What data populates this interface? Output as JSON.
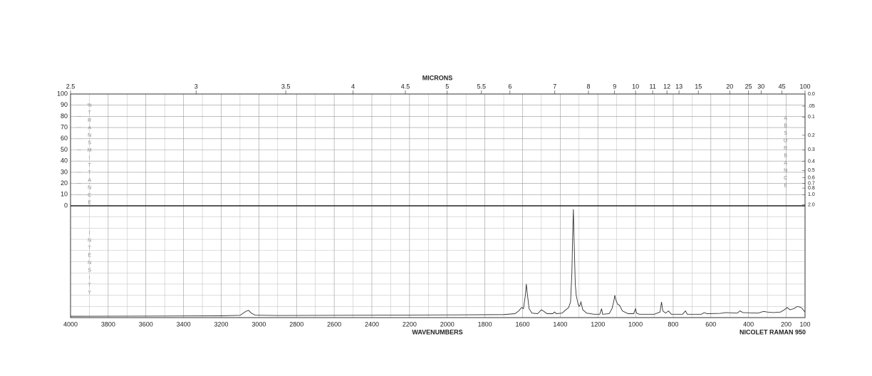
{
  "chart_data": {
    "type": "line",
    "top_x_label": "MICRONS",
    "x_label": "WAVENUMBERS",
    "instrument": "NICOLET RAMAN 950",
    "y_label": "INTENSITY",
    "color": "#333333",
    "grid": true,
    "xlim": [
      4000,
      100
    ],
    "xticks": [
      4000,
      3800,
      3600,
      3400,
      3200,
      3000,
      2800,
      2600,
      2400,
      2200,
      2000,
      1800,
      1600,
      1400,
      1200,
      1000,
      800,
      600,
      400,
      200,
      100
    ],
    "microns_ticks": [
      2.5,
      3,
      3.5,
      4,
      4.5,
      5,
      5.5,
      6,
      7,
      8,
      9,
      10,
      11,
      12,
      13,
      15,
      20,
      25,
      30,
      45,
      100
    ],
    "transmittance": {
      "label": "%TRANSMITTANCE",
      "lim": [
        0,
        100
      ],
      "ticks": [
        0,
        10,
        20,
        30,
        40,
        50,
        60,
        70,
        80,
        90,
        100
      ]
    },
    "absorbance": {
      "label": "ABSORBANCE",
      "ticks": [
        {
          "value": 0,
          "label": "0.0"
        },
        {
          "value": 0.05,
          "label": ".05"
        },
        0.1,
        0.2,
        0.3,
        0.4,
        0.5,
        0.6,
        0.7,
        0.8,
        {
          "value": 1,
          "label": "1.0"
        },
        {
          "value": 2,
          "label": "2.0"
        }
      ]
    },
    "ylim": [
      0,
      100
    ],
    "x": [
      4000,
      3500,
      3200,
      3100,
      3070,
      3055,
      3040,
      3020,
      2900,
      2500,
      2000,
      1700,
      1640,
      1620,
      1605,
      1595,
      1585,
      1580,
      1575,
      1565,
      1550,
      1520,
      1500,
      1490,
      1470,
      1440,
      1430,
      1420,
      1390,
      1370,
      1355,
      1345,
      1338,
      1333,
      1330,
      1327,
      1320,
      1315,
      1305,
      1300,
      1295,
      1290,
      1280,
      1260,
      1220,
      1190,
      1180,
      1175,
      1140,
      1125,
      1115,
      1110,
      1105,
      1095,
      1085,
      1070,
      1040,
      1010,
      1000,
      995,
      980,
      900,
      870,
      862,
      855,
      840,
      825,
      810,
      750,
      735,
      725,
      650,
      635,
      620,
      550,
      520,
      460,
      445,
      430,
      350,
      320,
      300,
      270,
      230,
      210,
      195,
      180,
      160,
      140,
      120,
      100
    ],
    "values": [
      1.2,
      1.4,
      1.6,
      2.0,
      5.5,
      6.5,
      4,
      2.2,
      1.9,
      2.1,
      2.4,
      2.7,
      3.5,
      6,
      9,
      8,
      20,
      30,
      22,
      8,
      4,
      3.5,
      7,
      6,
      3.5,
      3.5,
      5,
      3.5,
      4,
      7,
      9,
      14,
      40,
      80,
      97,
      75,
      30,
      20,
      12,
      10,
      11,
      14,
      7,
      4,
      3,
      3,
      8,
      3,
      3.5,
      8,
      15,
      20,
      16,
      12,
      11,
      6,
      3.5,
      3.5,
      8,
      4,
      3,
      3,
      5,
      14,
      6,
      4,
      6,
      3,
      3,
      6,
      3,
      3,
      4.5,
      3.5,
      3.8,
      4.5,
      4,
      6,
      4.5,
      4,
      5.5,
      5,
      4.5,
      5,
      7,
      9,
      7,
      8,
      10,
      9,
      5
    ]
  }
}
